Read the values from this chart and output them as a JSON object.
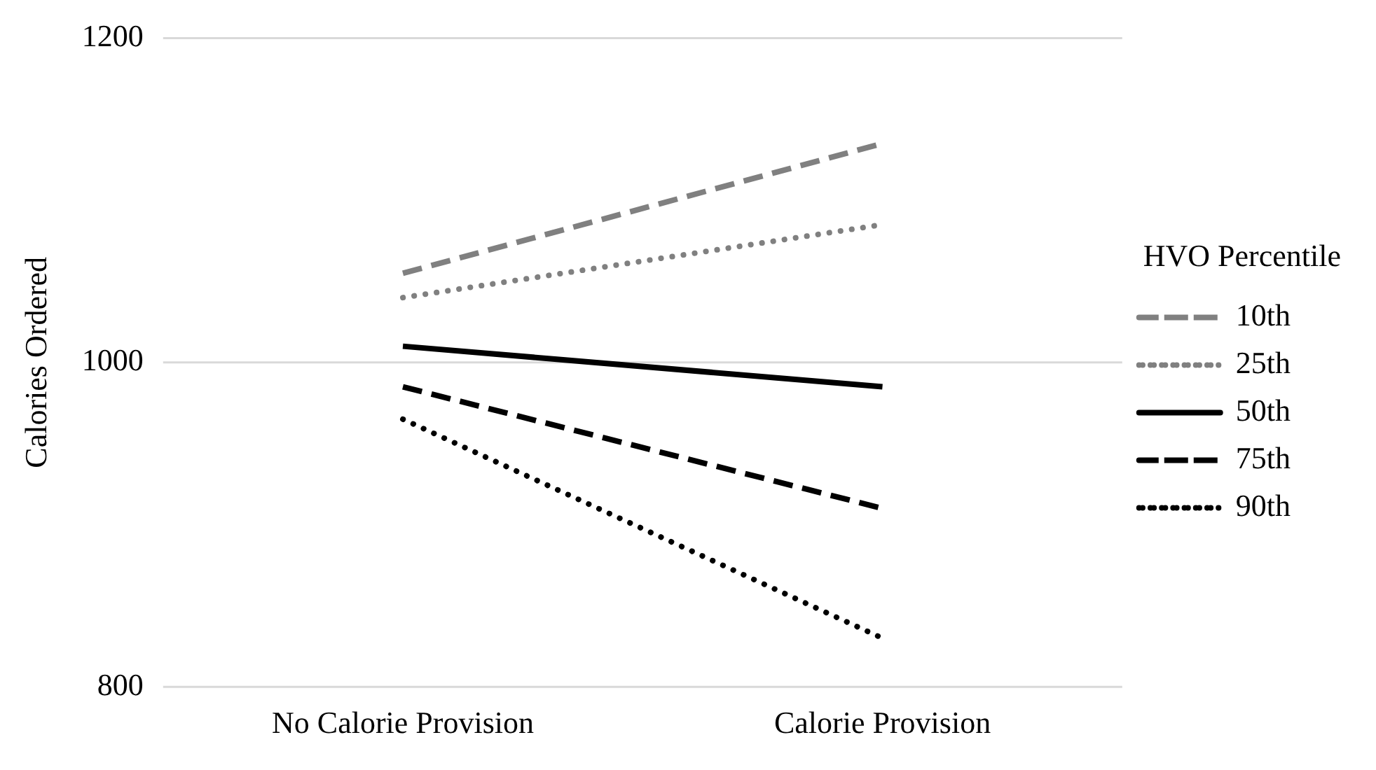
{
  "chart_data": {
    "type": "line",
    "ylabel": "Calories Ordered",
    "legend_title": "HVO Percentile",
    "categories": [
      "No Calorie Provision",
      "Calorie Provision"
    ],
    "series": [
      {
        "name": "10th",
        "color": "#808080",
        "line_style": "dashed",
        "values": [
          1055,
          1135
        ]
      },
      {
        "name": "25th",
        "color": "#808080",
        "line_style": "dotted",
        "values": [
          1040,
          1085
        ]
      },
      {
        "name": "50th",
        "color": "#000000",
        "line_style": "solid",
        "values": [
          1010,
          985
        ]
      },
      {
        "name": "75th",
        "color": "#000000",
        "line_style": "dashed",
        "values": [
          985,
          910
        ]
      },
      {
        "name": "90th",
        "color": "#000000",
        "line_style": "dotted",
        "values": [
          965,
          830
        ]
      }
    ],
    "ylim": [
      800,
      1200
    ],
    "yticks": [
      800,
      1000,
      1200
    ],
    "grid": "y",
    "legend": "right",
    "marker": "none"
  }
}
